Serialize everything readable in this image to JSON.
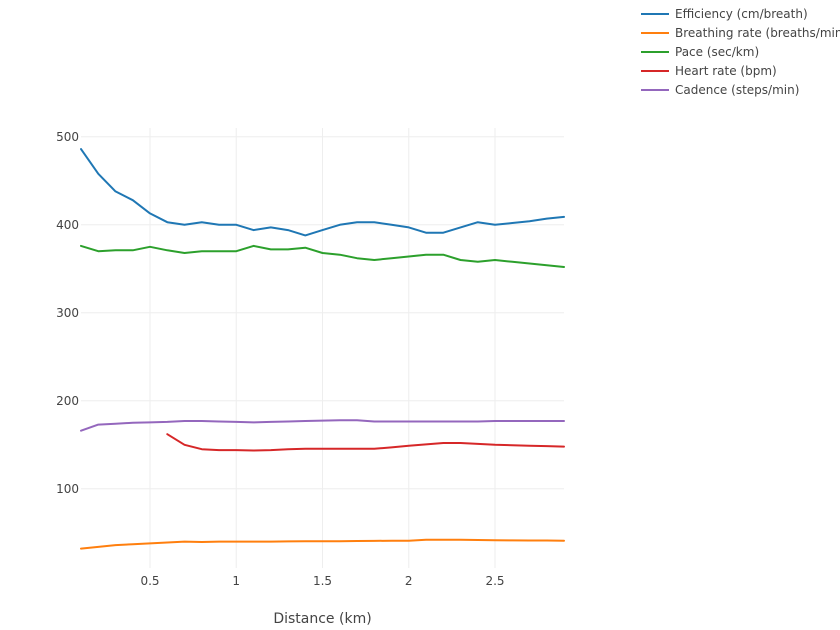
{
  "chart_data": {
    "type": "line",
    "title": "",
    "xlabel": "Distance (km)",
    "ylabel": "",
    "xlim": [
      0.1,
      2.9
    ],
    "ylim": [
      10,
      510
    ],
    "xticks": [
      0.5,
      1,
      1.5,
      2,
      2.5
    ],
    "xtick_labels": [
      "0.5",
      "1",
      "1.5",
      "2",
      "2.5"
    ],
    "yticks": [
      100,
      200,
      300,
      400,
      500
    ],
    "ytick_labels": [
      "100",
      "200",
      "300",
      "400",
      "500"
    ],
    "grid": true,
    "legend_position": "top-right",
    "series": [
      {
        "name": "Efficiency (cm/breath)",
        "color": "#1f77b4",
        "x": [
          0.1,
          0.2,
          0.3,
          0.4,
          0.5,
          0.6,
          0.7,
          0.8,
          0.9,
          1.0,
          1.1,
          1.2,
          1.3,
          1.4,
          1.5,
          1.6,
          1.7,
          1.8,
          1.9,
          2.0,
          2.1,
          2.2,
          2.3,
          2.4,
          2.5,
          2.6,
          2.7,
          2.8,
          2.9
        ],
        "y": [
          486,
          458,
          438,
          428,
          413,
          403,
          400,
          403,
          400,
          400,
          394,
          397,
          394,
          388,
          394,
          400,
          403,
          403,
          400,
          397,
          391,
          391,
          397,
          403,
          400,
          402,
          404,
          407,
          409
        ]
      },
      {
        "name": "Breathing rate (breaths/min)",
        "color": "#ff7f0e",
        "x": [
          0.1,
          0.2,
          0.3,
          0.4,
          0.5,
          0.6,
          0.7,
          0.8,
          0.9,
          1.0,
          1.1,
          1.2,
          1.3,
          1.4,
          1.5,
          1.6,
          1.7,
          1.8,
          1.9,
          2.0,
          2.1,
          2.2,
          2.3,
          2.4,
          2.5,
          2.6,
          2.7,
          2.8,
          2.9
        ],
        "y": [
          32,
          34,
          36,
          37,
          38,
          39,
          40,
          39.5,
          40,
          40,
          40,
          40,
          40.2,
          40.3,
          40.5,
          40.5,
          40.7,
          40.8,
          41,
          41,
          42,
          42,
          42,
          41.8,
          41.6,
          41.4,
          41.3,
          41.2,
          41
        ]
      },
      {
        "name": "Pace (sec/km)",
        "color": "#2ca02c",
        "x": [
          0.1,
          0.2,
          0.3,
          0.4,
          0.5,
          0.6,
          0.7,
          0.8,
          0.9,
          1.0,
          1.1,
          1.2,
          1.3,
          1.4,
          1.5,
          1.6,
          1.7,
          1.8,
          1.9,
          2.0,
          2.1,
          2.2,
          2.3,
          2.4,
          2.5,
          2.6,
          2.7,
          2.8,
          2.9
        ],
        "y": [
          376,
          370,
          371,
          371,
          375,
          371,
          368,
          370,
          370,
          370,
          376,
          372,
          372,
          374,
          368,
          366,
          362,
          360,
          362,
          364,
          366,
          366,
          360,
          358,
          360,
          358,
          356,
          354,
          352
        ]
      },
      {
        "name": "Heart rate (bpm)",
        "color": "#d62728",
        "x": [
          0.6,
          0.7,
          0.8,
          0.9,
          1.0,
          1.1,
          1.2,
          1.3,
          1.4,
          1.5,
          1.6,
          1.7,
          1.8,
          1.9,
          2.0,
          2.1,
          2.2,
          2.3,
          2.4,
          2.5,
          2.6,
          2.7,
          2.8,
          2.9
        ],
        "y": [
          162,
          150,
          145,
          144,
          144,
          143.5,
          144,
          145,
          145.5,
          145.5,
          145.5,
          145.5,
          145.5,
          147,
          149,
          150.5,
          152,
          152,
          151,
          150,
          149.5,
          149,
          148.5,
          148
        ]
      },
      {
        "name": "Cadence (steps/min)",
        "color": "#9467bd",
        "x": [
          0.1,
          0.2,
          0.3,
          0.4,
          0.5,
          0.6,
          0.7,
          0.8,
          0.9,
          1.0,
          1.1,
          1.2,
          1.3,
          1.4,
          1.5,
          1.6,
          1.7,
          1.8,
          1.9,
          2.0,
          2.1,
          2.2,
          2.3,
          2.4,
          2.5,
          2.6,
          2.7,
          2.8,
          2.9
        ],
        "y": [
          166,
          173,
          174,
          175,
          175.5,
          176,
          177,
          177,
          176.5,
          176,
          175.5,
          176,
          176.5,
          177,
          177.5,
          178,
          178,
          176.5,
          176.5,
          176.5,
          176.5,
          176.5,
          176.5,
          176.5,
          177,
          177,
          177,
          177,
          177
        ]
      }
    ]
  }
}
